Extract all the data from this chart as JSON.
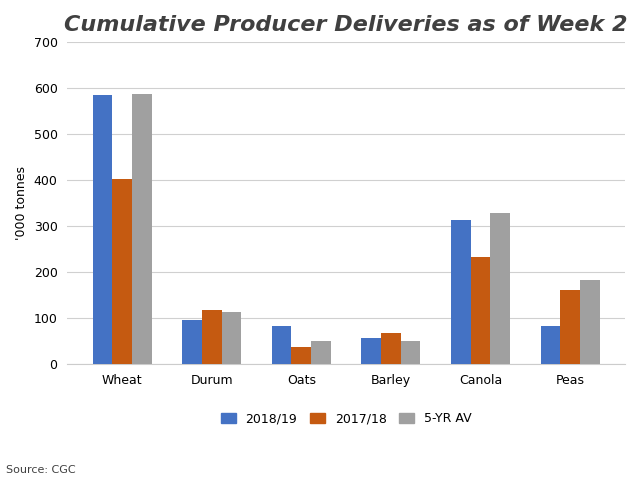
{
  "title": "Cumulative Producer Deliveries as of Week 2",
  "ylabel": "'000 tonnes",
  "source": "Source: CGC",
  "categories": [
    "Wheat",
    "Durum",
    "Oats",
    "Barley",
    "Canola",
    "Peas"
  ],
  "series": {
    "2018/19": [
      585,
      95,
      83,
      57,
      313,
      82
    ],
    "2017/18": [
      402,
      117,
      37,
      68,
      232,
      161
    ],
    "5-YR AV": [
      588,
      114,
      50,
      51,
      328,
      183
    ]
  },
  "colors": {
    "2018/19": "#4472C4",
    "2017/18": "#C55A11",
    "5-YR AV": "#A0A0A0"
  },
  "ylim": [
    0,
    700
  ],
  "yticks": [
    0,
    100,
    200,
    300,
    400,
    500,
    600,
    700
  ],
  "bar_width": 0.22,
  "legend_labels": [
    "2018/19",
    "2017/18",
    "5-YR AV"
  ],
  "background_color": "#ffffff",
  "title_fontsize": 16,
  "title_fontstyle": "italic",
  "title_fontweight": "bold",
  "title_color": "#404040",
  "axis_label_fontsize": 9,
  "tick_fontsize": 9,
  "legend_fontsize": 9,
  "source_fontsize": 8,
  "grid_color": "#d0d0d0"
}
